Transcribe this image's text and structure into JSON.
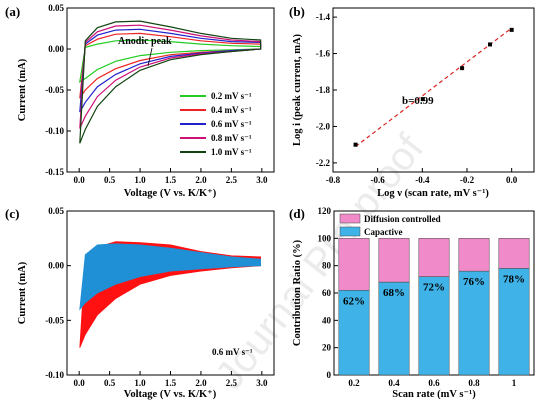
{
  "watermark": "Journal Pre-proof",
  "chart_data": [
    {
      "panel": "(a)",
      "type": "line",
      "xlabel": "Voltage (V vs. K/K⁺)",
      "ylabel": "Current (mA)",
      "xlim": [
        -0.2,
        3.2
      ],
      "ylim": [
        -0.15,
        0.05
      ],
      "xticks": [
        "0.0",
        "0.5",
        "1.0",
        "1.5",
        "2.0",
        "2.5",
        "3.0"
      ],
      "yticks": [
        "0.05",
        "0.00",
        "-0.05",
        "-0.10",
        "-0.15"
      ],
      "xtick_vals": [
        0,
        0.5,
        1.0,
        1.5,
        2.0,
        2.5,
        3.0
      ],
      "ytick_vals": [
        0.05,
        0,
        -0.05,
        -0.1,
        -0.15
      ],
      "annotation": {
        "text": "Anodic peak",
        "x": 1.3,
        "y": 0.032
      },
      "legend_position": "right",
      "series": [
        {
          "name": "0.2 mV s⁻¹",
          "color": "#22cc22",
          "x": [
            0.01,
            0.1,
            0.3,
            0.6,
            1.0,
            1.5,
            2.0,
            2.5,
            2.98,
            2.98,
            2.5,
            2.0,
            1.5,
            1.0,
            0.6,
            0.3,
            0.1,
            0.01
          ],
          "y": [
            -0.04,
            -0.036,
            -0.025,
            -0.015,
            -0.008,
            -0.004,
            -0.002,
            -0.001,
            0.0,
            0.003,
            0.004,
            0.006,
            0.009,
            0.011,
            0.01,
            0.006,
            0.002,
            -0.04
          ]
        },
        {
          "name": "0.4 mV s⁻¹",
          "color": "#ee2222",
          "x": [
            0.01,
            0.1,
            0.3,
            0.6,
            1.0,
            1.5,
            2.0,
            2.5,
            2.98,
            2.98,
            2.5,
            2.0,
            1.5,
            1.0,
            0.6,
            0.3,
            0.1,
            0.01
          ],
          "y": [
            -0.06,
            -0.05,
            -0.036,
            -0.024,
            -0.014,
            -0.007,
            -0.004,
            -0.002,
            0.0,
            0.006,
            0.007,
            0.01,
            0.015,
            0.019,
            0.018,
            0.012,
            0.004,
            -0.06
          ]
        },
        {
          "name": "0.6 mV s⁻¹",
          "color": "#2222cc",
          "x": [
            0.01,
            0.1,
            0.3,
            0.6,
            1.0,
            1.5,
            2.0,
            2.5,
            2.98,
            2.98,
            2.5,
            2.0,
            1.5,
            1.0,
            0.6,
            0.3,
            0.1,
            0.01
          ],
          "y": [
            -0.077,
            -0.065,
            -0.046,
            -0.031,
            -0.018,
            -0.009,
            -0.005,
            -0.002,
            0.0,
            0.008,
            0.009,
            0.013,
            0.019,
            0.024,
            0.023,
            0.017,
            0.006,
            -0.077
          ]
        },
        {
          "name": "0.8 mV s⁻¹",
          "color": "#cc1177",
          "x": [
            0.01,
            0.1,
            0.3,
            0.6,
            1.0,
            1.5,
            2.0,
            2.5,
            2.98,
            2.98,
            2.5,
            2.0,
            1.5,
            1.0,
            0.6,
            0.3,
            0.1,
            0.01
          ],
          "y": [
            -0.097,
            -0.082,
            -0.058,
            -0.038,
            -0.022,
            -0.011,
            -0.006,
            -0.003,
            0.0,
            0.009,
            0.011,
            0.016,
            0.023,
            0.029,
            0.028,
            0.021,
            0.008,
            -0.097
          ]
        },
        {
          "name": "1.0 mV s⁻¹",
          "color": "#114411",
          "x": [
            0.01,
            0.1,
            0.3,
            0.6,
            1.0,
            1.5,
            2.0,
            2.5,
            2.98,
            2.98,
            2.5,
            2.0,
            1.5,
            1.0,
            0.6,
            0.3,
            0.1,
            0.01
          ],
          "y": [
            -0.115,
            -0.098,
            -0.07,
            -0.046,
            -0.026,
            -0.013,
            -0.007,
            -0.003,
            0.0,
            0.011,
            0.013,
            0.019,
            0.027,
            0.034,
            0.033,
            0.026,
            0.01,
            -0.115
          ]
        }
      ]
    },
    {
      "panel": "(b)",
      "type": "scatter",
      "xlabel": "Log ν (scan rate, mV s⁻¹)",
      "ylabel": "Log i (peak current, mA)",
      "xlim": [
        -0.8,
        0.1
      ],
      "ylim": [
        -2.25,
        -1.35
      ],
      "xticks": [
        "-0.8",
        "-0.6",
        "-0.4",
        "-0.2",
        "0.0"
      ],
      "yticks": [
        "-1.4",
        "-1.6",
        "-1.8",
        "-2.0",
        "-2.2"
      ],
      "xtick_vals": [
        -0.8,
        -0.6,
        -0.4,
        -0.2,
        0.0
      ],
      "ytick_vals": [
        -1.4,
        -1.6,
        -1.8,
        -2.0,
        -2.2
      ],
      "annotation": {
        "text": "b=0.99",
        "x": -0.42,
        "y": -1.72
      },
      "points": {
        "x": [
          -0.699,
          -0.398,
          -0.222,
          -0.097,
          0.0
        ],
        "y": [
          -2.1,
          -1.85,
          -1.68,
          -1.55,
          -1.47
        ]
      },
      "fit": {
        "x": [
          -0.699,
          0.0
        ],
        "y": [
          -2.11,
          -1.46
        ],
        "color": "#dd2222"
      }
    },
    {
      "panel": "(c)",
      "type": "area",
      "xlabel": "Voltage (V vs. K/K⁺)",
      "ylabel": "Current (mA)",
      "xlim": [
        -0.2,
        3.2
      ],
      "ylim": [
        -0.1,
        0.05
      ],
      "xticks": [
        "0.0",
        "0.5",
        "1.0",
        "1.5",
        "2.0",
        "2.5",
        "3.0"
      ],
      "yticks": [
        "0.05",
        "0.00",
        "-0.05",
        "-0.10"
      ],
      "xtick_vals": [
        0,
        0.5,
        1.0,
        1.5,
        2.0,
        2.5,
        3.0
      ],
      "ytick_vals": [
        0.05,
        0,
        -0.05,
        -0.1
      ],
      "label": "0.6 mV s⁻¹",
      "total": {
        "color": "#ff1111",
        "x": [
          0.01,
          0.1,
          0.3,
          0.6,
          1.0,
          1.5,
          2.0,
          2.5,
          2.98,
          2.98,
          2.5,
          2.0,
          1.5,
          1.0,
          0.6,
          0.3,
          0.1,
          0.01
        ],
        "y": [
          -0.075,
          -0.063,
          -0.045,
          -0.03,
          -0.017,
          -0.009,
          -0.005,
          -0.002,
          0.0,
          0.008,
          0.009,
          0.013,
          0.019,
          0.021,
          0.022,
          0.017,
          0.006,
          -0.075
        ]
      },
      "capacitive": {
        "color": "#1f8fd6",
        "x": [
          0.01,
          0.1,
          0.3,
          0.6,
          1.0,
          1.5,
          2.0,
          2.5,
          2.98,
          2.98,
          2.5,
          2.0,
          1.5,
          1.0,
          0.6,
          0.3,
          0.1,
          0.01
        ],
        "y": [
          -0.04,
          -0.034,
          -0.025,
          -0.017,
          -0.01,
          -0.005,
          -0.003,
          -0.001,
          0.0,
          0.006,
          0.008,
          0.012,
          0.016,
          0.019,
          0.02,
          0.019,
          0.01,
          -0.04
        ]
      }
    },
    {
      "panel": "(d)",
      "type": "bar",
      "xlabel": "Scan rate (mV s⁻¹)",
      "ylabel": "Contribution Ratio (%)",
      "categories": [
        "0.2",
        "0.4",
        "0.6",
        "0.8",
        "1"
      ],
      "ylim": [
        0,
        120
      ],
      "yticks": [
        "0",
        "20",
        "40",
        "60",
        "80",
        "100",
        "120"
      ],
      "ytick_vals": [
        0,
        20,
        40,
        60,
        80,
        100,
        120
      ],
      "legend_position": "top-left",
      "series": [
        {
          "name": "Capactive",
          "color": "#3fb3e8",
          "values": [
            62,
            68,
            72,
            76,
            78
          ]
        },
        {
          "name": "Diffusion controlled",
          "color": "#f08ac8",
          "values": [
            38,
            32,
            28,
            24,
            22
          ]
        }
      ],
      "data_labels": [
        "62%",
        "68%",
        "72%",
        "76%",
        "78%"
      ]
    }
  ]
}
